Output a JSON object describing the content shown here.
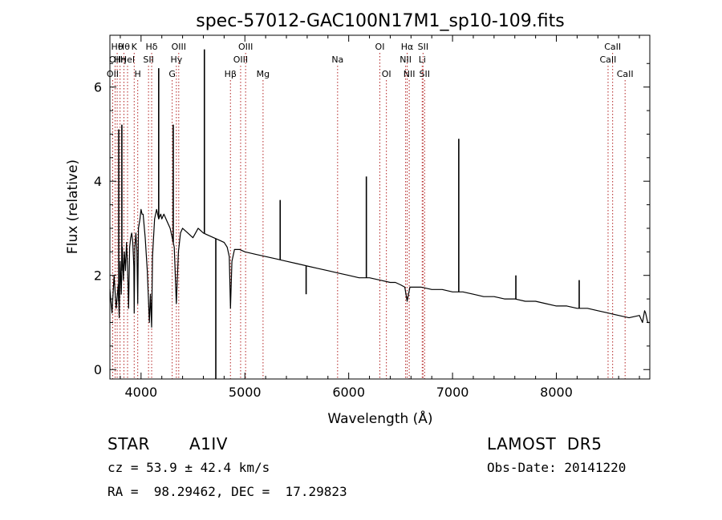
{
  "chart_data": {
    "type": "line",
    "title": "spec-57012-GAC100N17M1_sp10-109.fits",
    "xlabel": "Wavelength (Å)",
    "ylabel": "Flux (relative)",
    "xlim": [
      3700,
      8900
    ],
    "ylim": [
      -0.2,
      7.1
    ],
    "xticks": [
      4000,
      5000,
      6000,
      7000,
      8000
    ],
    "yticks": [
      0,
      2,
      4,
      6
    ],
    "grid": false,
    "series": [
      {
        "x": [
          3700,
          3720,
          3740,
          3760,
          3780,
          3790,
          3800,
          3810,
          3820,
          3830,
          3840,
          3850,
          3860,
          3870,
          3880,
          3890,
          3900,
          3910,
          3920,
          3930,
          3934,
          3940,
          3950,
          3960,
          3968,
          3975,
          3990,
          4000,
          4010,
          4020,
          4040,
          4060,
          4080,
          4090,
          4102,
          4110,
          4130,
          4150,
          4170,
          4190,
          4200,
          4220,
          4240,
          4260,
          4280,
          4300,
          4320,
          4340,
          4360,
          4380,
          4400,
          4450,
          4500,
          4550,
          4600,
          4650,
          4700,
          4750,
          4800,
          4830,
          4850,
          4861,
          4875,
          4900,
          4950,
          5000,
          5100,
          5200,
          5300,
          5400,
          5500,
          5600,
          5700,
          5800,
          5900,
          6000,
          6100,
          6200,
          6300,
          6400,
          6450,
          6500,
          6540,
          6563,
          6590,
          6650,
          6700,
          6800,
          6900,
          7000,
          7100,
          7200,
          7300,
          7400,
          7500,
          7600,
          7700,
          7800,
          7900,
          8000,
          8100,
          8200,
          8300,
          8400,
          8500,
          8600,
          8700,
          8800,
          8830,
          8850,
          8860,
          8880,
          8900
        ],
        "values": [
          1.7,
          1.2,
          2.0,
          1.3,
          1.8,
          1.1,
          2.3,
          1.6,
          2.6,
          1.9,
          2.5,
          2.1,
          2.7,
          2.2,
          1.3,
          2.6,
          2.8,
          2.9,
          2.7,
          2.2,
          1.2,
          2.6,
          2.9,
          2.5,
          1.4,
          3.0,
          3.2,
          3.4,
          3.3,
          3.3,
          2.8,
          2.1,
          1.0,
          1.6,
          0.9,
          2.4,
          3.2,
          3.4,
          3.2,
          3.3,
          3.2,
          3.3,
          3.2,
          3.1,
          3.0,
          2.8,
          2.6,
          1.4,
          2.5,
          2.9,
          3.0,
          2.9,
          2.8,
          3.0,
          2.9,
          2.85,
          2.8,
          2.75,
          2.7,
          2.6,
          2.4,
          1.3,
          2.3,
          2.55,
          2.55,
          2.5,
          2.45,
          2.4,
          2.35,
          2.3,
          2.25,
          2.2,
          2.15,
          2.1,
          2.05,
          2.0,
          1.95,
          1.95,
          1.9,
          1.85,
          1.85,
          1.8,
          1.75,
          1.45,
          1.75,
          1.75,
          1.75,
          1.7,
          1.7,
          1.65,
          1.65,
          1.6,
          1.55,
          1.55,
          1.5,
          1.5,
          1.45,
          1.45,
          1.4,
          1.35,
          1.35,
          1.3,
          1.3,
          1.25,
          1.2,
          1.15,
          1.1,
          1.15,
          1.0,
          1.25,
          1.2,
          1.0,
          1.0
        ]
      }
    ],
    "spikes": [
      {
        "x": 3785,
        "y": 5.1
      },
      {
        "x": 3815,
        "y": 5.2
      },
      {
        "x": 4170,
        "y": 6.4
      },
      {
        "x": 4310,
        "y": 5.2
      },
      {
        "x": 4610,
        "y": 6.8
      },
      {
        "x": 4720,
        "y": -0.2
      },
      {
        "x": 5340,
        "y": 3.6
      },
      {
        "x": 5590,
        "y": 1.6
      },
      {
        "x": 6170,
        "y": 4.1
      },
      {
        "x": 7060,
        "y": 4.9
      },
      {
        "x": 7610,
        "y": 2.0
      },
      {
        "x": 8220,
        "y": 1.9
      }
    ],
    "lines": [
      {
        "x": 3727,
        "label": "OII",
        "row": 3
      },
      {
        "x": 3750,
        "label": "OII",
        "row": 2
      },
      {
        "x": 3770,
        "label": "Hθ",
        "row": 1
      },
      {
        "x": 3798,
        "label": "Hη",
        "row": 2
      },
      {
        "x": 3835,
        "label": "Hθ",
        "row": 1
      },
      {
        "x": 3870,
        "label": "HeI",
        "row": 2
      },
      {
        "x": 3934,
        "label": "K",
        "row": 1
      },
      {
        "x": 3968,
        "label": "H",
        "row": 3
      },
      {
        "x": 4072,
        "label": "SII",
        "row": 2
      },
      {
        "x": 4102,
        "label": "Hδ",
        "row": 1
      },
      {
        "x": 4300,
        "label": "G",
        "row": 3
      },
      {
        "x": 4340,
        "label": "Hγ",
        "row": 2
      },
      {
        "x": 4363,
        "label": "OIII",
        "row": 1
      },
      {
        "x": 4861,
        "label": "Hβ",
        "row": 3
      },
      {
        "x": 4959,
        "label": "OIII",
        "row": 2
      },
      {
        "x": 5007,
        "label": "OIII",
        "row": 1
      },
      {
        "x": 5175,
        "label": "Mg",
        "row": 3
      },
      {
        "x": 5893,
        "label": "Na",
        "row": 2
      },
      {
        "x": 6300,
        "label": "OI",
        "row": 1
      },
      {
        "x": 6363,
        "label": "OI",
        "row": 3
      },
      {
        "x": 6548,
        "label": "NII",
        "row": 2
      },
      {
        "x": 6563,
        "label": "Hα",
        "row": 1
      },
      {
        "x": 6583,
        "label": "NII",
        "row": 3
      },
      {
        "x": 6708,
        "label": "Li",
        "row": 2
      },
      {
        "x": 6716,
        "label": "SII",
        "row": 1
      },
      {
        "x": 6731,
        "label": "SII",
        "row": 3
      },
      {
        "x": 8498,
        "label": "CaII",
        "row": 2
      },
      {
        "x": 8542,
        "label": "CaII",
        "row": 1
      },
      {
        "x": 8662,
        "label": "CaII",
        "row": 3
      }
    ]
  },
  "info": {
    "class": "STAR",
    "subclass": "A1IV",
    "survey": "LAMOST  DR5",
    "cz": "cz = 53.9 ± 42.4 km/s",
    "obs_date": "Obs-Date: 20141220",
    "coords": "RA =  98.29462, DEC =  17.29823"
  },
  "colors": {
    "reference_line": "#b22222",
    "spectrum": "#000000"
  }
}
